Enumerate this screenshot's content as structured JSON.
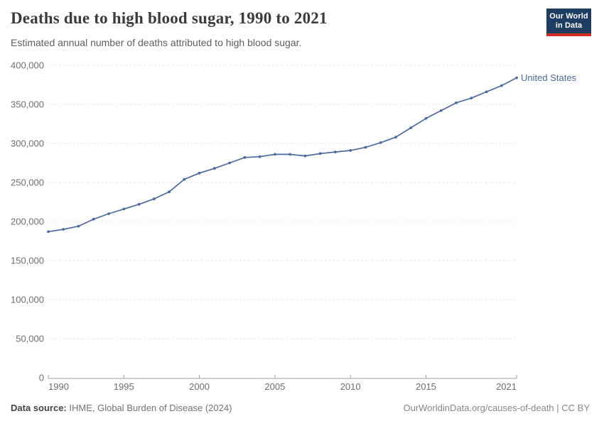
{
  "header": {
    "title": "Deaths due to high blood sugar, 1990 to 2021",
    "subtitle": "Estimated annual number of deaths attributed to high blood sugar.",
    "logo": {
      "line1": "Our World",
      "line2": "in Data"
    }
  },
  "chart_data": {
    "type": "line",
    "title": "Deaths due to high blood sugar, 1990 to 2021",
    "subtitle": "Estimated annual number of deaths attributed to high blood sugar.",
    "x": [
      1990,
      1991,
      1992,
      1993,
      1994,
      1995,
      1996,
      1997,
      1998,
      1999,
      2000,
      2001,
      2002,
      2003,
      2004,
      2005,
      2006,
      2007,
      2008,
      2009,
      2010,
      2011,
      2012,
      2013,
      2014,
      2015,
      2016,
      2017,
      2018,
      2019,
      2020,
      2021
    ],
    "series": [
      {
        "name": "United States",
        "values": [
          187000,
          190000,
          194000,
          203000,
          210000,
          216000,
          222000,
          229000,
          238000,
          254000,
          262000,
          268000,
          275000,
          282000,
          283000,
          286000,
          286000,
          284000,
          287000,
          289000,
          291000,
          295000,
          301000,
          308000,
          320000,
          332000,
          342000,
          352000,
          358000,
          366000,
          374000,
          384000
        ]
      }
    ],
    "xlabel": "",
    "ylabel": "",
    "ylim": [
      0,
      400000
    ],
    "ytick_step": 50000,
    "yticks": [
      0,
      50000,
      100000,
      150000,
      200000,
      250000,
      300000,
      350000,
      400000
    ],
    "xticks": [
      1990,
      1995,
      2000,
      2005,
      2010,
      2015,
      2021
    ],
    "grid": "horizontal-dashed",
    "legend_position": "end-of-line-label"
  },
  "footer": {
    "data_source_label": "Data source:",
    "data_source_value": " IHME, Global Burden of Disease (2024)",
    "link": "OurWorldinData.org/causes-of-death | CC BY"
  },
  "colors": {
    "series_blue": "#4c6a9c",
    "gridline": "#e0e0e0",
    "axis_line": "#a1a1a1",
    "tick_label": "#6e6e6e",
    "logo_background": "#1d3d63",
    "logo_stripe": "#d42b21"
  }
}
